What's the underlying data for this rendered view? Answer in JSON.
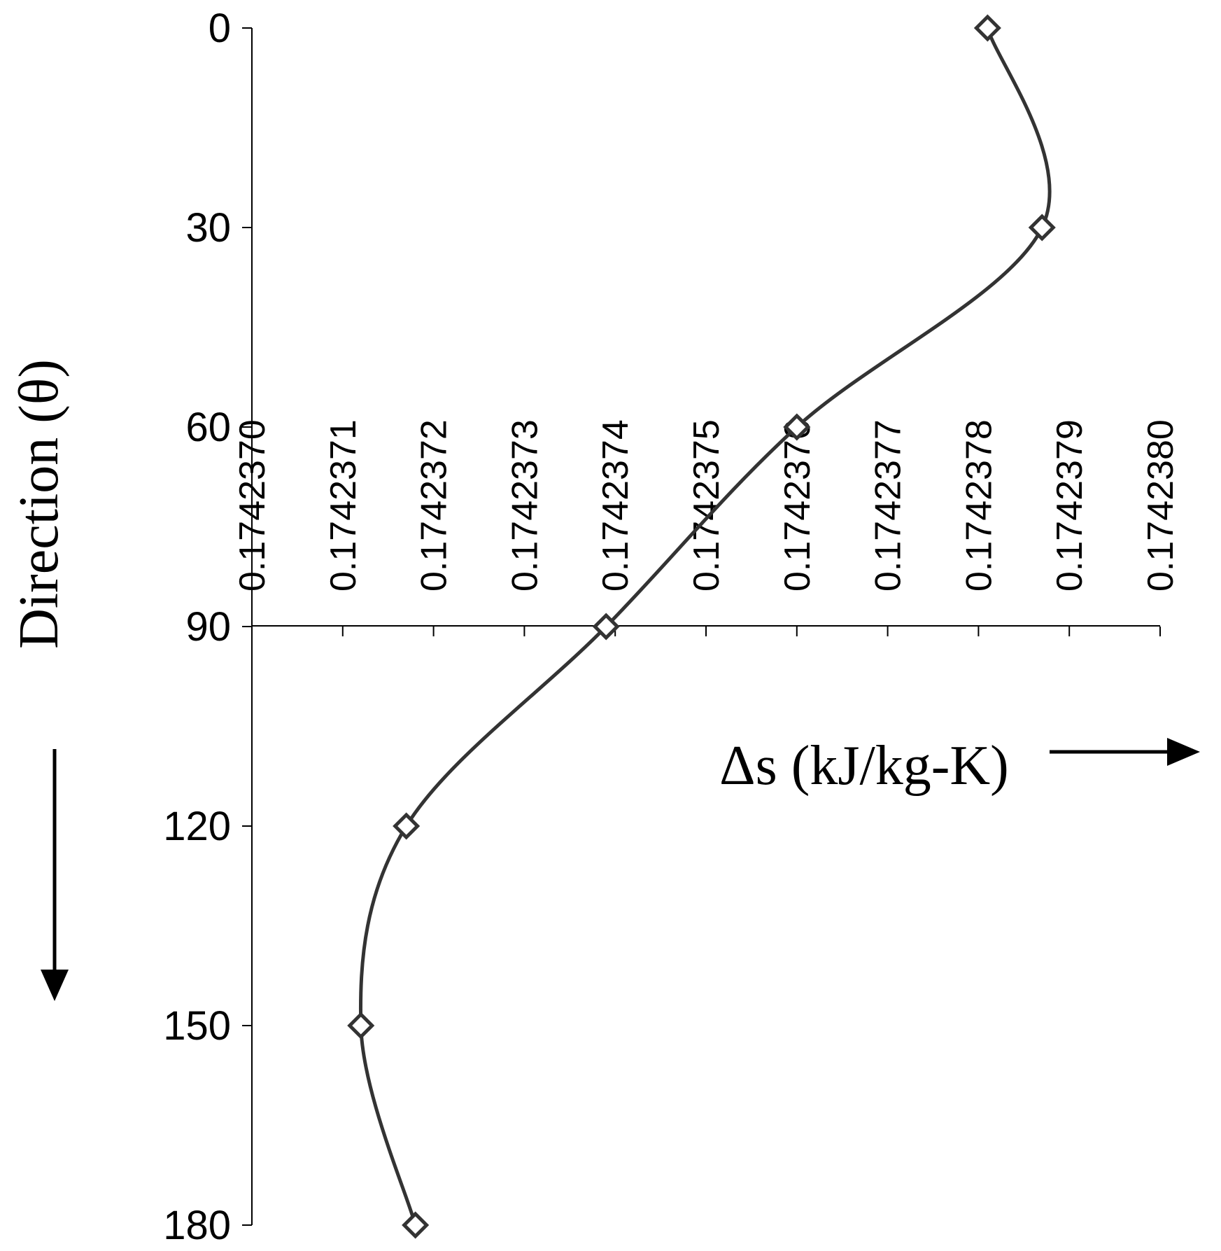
{
  "chart_data": {
    "type": "line",
    "x_axis_position": "top",
    "y_axis_inverted": true,
    "smoothed": true,
    "marker": "diamond-hollow",
    "line_color": "#333333",
    "xlabel": "Δs (kJ/kg-K)",
    "ylabel": "Direction (θ)",
    "xlim": [
      0.174237,
      0.174238
    ],
    "ylim": [
      0,
      180
    ],
    "x_ticks": [
      "0.1742370",
      "0.1742371",
      "0.1742372",
      "0.1742373",
      "0.1742374",
      "0.1742375",
      "0.1742376",
      "0.1742377",
      "0.1742378",
      "0.1742379",
      "0.1742380"
    ],
    "y_ticks": [
      "0",
      "30",
      "60",
      "90",
      "120",
      "150",
      "180"
    ],
    "y_tick_values": [
      0,
      30,
      60,
      90,
      120,
      150,
      180
    ],
    "axis_crossing_y": 90,
    "grid": false,
    "legend": "none",
    "series": [
      {
        "points": [
          {
            "x": 0.17423781,
            "y": 0
          },
          {
            "x": 0.17423787,
            "y": 30
          },
          {
            "x": 0.1742376,
            "y": 60
          },
          {
            "x": 0.17423739,
            "y": 90
          },
          {
            "x": 0.17423717,
            "y": 120
          },
          {
            "x": 0.17423712,
            "y": 150
          },
          {
            "x": 0.17423718,
            "y": 180
          }
        ]
      }
    ]
  }
}
